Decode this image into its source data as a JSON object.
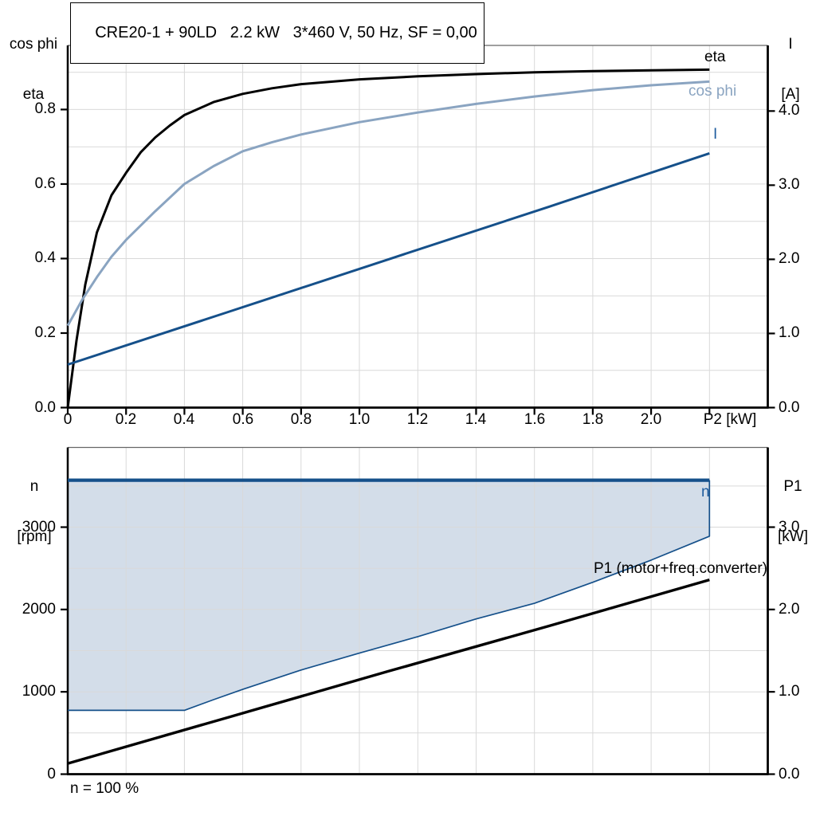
{
  "header": {
    "title": "CRE20-1 + 90LD   2.2 kW   3*460 V, 50 Hz, SF = 0,00"
  },
  "footnote": {
    "text": "n = 100 %"
  },
  "colors": {
    "curve_black": "#000000",
    "cos_phi_blue": "#8AA4C1",
    "dark_blue": "#15508A",
    "label_blue": "#1E5C9E",
    "area_fill": "#D3DDE9",
    "grid": "#D9D9D9",
    "frame": "#000000",
    "frame_top": "#666666"
  },
  "top_chart": {
    "left_axis_title": [
      "cos phi",
      "eta"
    ],
    "right_axis_title": [
      "I",
      "[A]"
    ],
    "x_axis_title": "P2 [kW]",
    "curve_labels": {
      "eta": "eta",
      "cos_phi": "cos phi",
      "i": "I"
    }
  },
  "bottom_chart": {
    "left_axis_title": [
      "n",
      "[rpm]"
    ],
    "right_axis_title": [
      "P1",
      "[kW]"
    ],
    "curve_labels": {
      "n": "n",
      "p1": "P1 (motor+freq.converter)"
    }
  },
  "chart_data": [
    {
      "id": "top",
      "type": "line",
      "title": "CRE20-1 + 90LD   2.2 kW   3*460 V, 50 Hz, SF = 0,00",
      "xlabel": "P2 [kW]",
      "x_axis": {
        "lim": [
          0,
          2.4
        ],
        "grid_step": 0.2,
        "ticks": [
          {
            "v": 0,
            "label": "0"
          },
          {
            "v": 0.2,
            "label": "0.2"
          },
          {
            "v": 0.4,
            "label": "0.4"
          },
          {
            "v": 0.6,
            "label": "0.6"
          },
          {
            "v": 0.8,
            "label": "0.8"
          },
          {
            "v": 1.0,
            "label": "1.0"
          },
          {
            "v": 1.2,
            "label": "1.2"
          },
          {
            "v": 1.4,
            "label": "1.4"
          },
          {
            "v": 1.6,
            "label": "1.6"
          },
          {
            "v": 1.8,
            "label": "1.8"
          },
          {
            "v": 2.0,
            "label": "2.0"
          },
          {
            "v": 2.2,
            "label": ""
          }
        ]
      },
      "left_axis": {
        "label": "cos phi / eta",
        "lim": [
          0,
          0.972
        ],
        "grid_step": 0.1,
        "ticks": [
          {
            "v": 0,
            "label": "0.0"
          },
          {
            "v": 0.2,
            "label": "0.2"
          },
          {
            "v": 0.4,
            "label": "0.4"
          },
          {
            "v": 0.6,
            "label": "0.6"
          },
          {
            "v": 0.8,
            "label": "0.8"
          }
        ]
      },
      "right_axis": {
        "label": "I [A]",
        "lim": [
          0,
          4.885
        ],
        "ticks": [
          {
            "v": 0,
            "label": "0.0"
          },
          {
            "v": 1,
            "label": "1.0"
          },
          {
            "v": 2,
            "label": "2.0"
          },
          {
            "v": 3,
            "label": "3.0"
          },
          {
            "v": 4,
            "label": "4.0"
          }
        ]
      },
      "series": [
        {
          "name": "eta",
          "axis": "left",
          "color": "#000000",
          "width": 3,
          "points": [
            [
              0,
              0
            ],
            [
              0.03,
              0.18
            ],
            [
              0.06,
              0.33
            ],
            [
              0.1,
              0.47
            ],
            [
              0.15,
              0.57
            ],
            [
              0.2,
              0.63
            ],
            [
              0.25,
              0.685
            ],
            [
              0.3,
              0.725
            ],
            [
              0.35,
              0.757
            ],
            [
              0.4,
              0.785
            ],
            [
              0.5,
              0.82
            ],
            [
              0.6,
              0.842
            ],
            [
              0.7,
              0.857
            ],
            [
              0.8,
              0.868
            ],
            [
              1.0,
              0.881
            ],
            [
              1.2,
              0.889
            ],
            [
              1.4,
              0.895
            ],
            [
              1.6,
              0.9
            ],
            [
              1.8,
              0.903
            ],
            [
              2.0,
              0.905
            ],
            [
              2.2,
              0.907
            ]
          ]
        },
        {
          "name": "cos phi",
          "axis": "left",
          "color": "#8AA4C1",
          "width": 3,
          "points": [
            [
              0,
              0.22
            ],
            [
              0.05,
              0.29
            ],
            [
              0.1,
              0.35
            ],
            [
              0.15,
              0.405
            ],
            [
              0.2,
              0.45
            ],
            [
              0.3,
              0.527
            ],
            [
              0.4,
              0.6
            ],
            [
              0.5,
              0.648
            ],
            [
              0.6,
              0.688
            ],
            [
              0.7,
              0.712
            ],
            [
              0.8,
              0.733
            ],
            [
              1.0,
              0.766
            ],
            [
              1.2,
              0.792
            ],
            [
              1.4,
              0.815
            ],
            [
              1.6,
              0.835
            ],
            [
              1.8,
              0.852
            ],
            [
              2.0,
              0.865
            ],
            [
              2.2,
              0.875
            ]
          ]
        },
        {
          "name": "I",
          "axis": "right",
          "color": "#15508A",
          "width": 3,
          "points": [
            [
              0,
              0.58
            ],
            [
              0.55,
              1.29
            ],
            [
              1.1,
              2.0
            ],
            [
              1.65,
              2.71
            ],
            [
              2.2,
              3.43
            ]
          ]
        }
      ]
    },
    {
      "id": "bottom",
      "type": "area",
      "xlabel": "",
      "x_axis": {
        "lim": [
          0,
          2.4
        ],
        "grid_step": 0.2,
        "ticks": []
      },
      "left_axis": {
        "label": "n [rpm]",
        "lim": [
          0,
          3968
        ],
        "grid_step": 500,
        "ticks": [
          {
            "v": 0,
            "label": "0"
          },
          {
            "v": 1000,
            "label": "1000"
          },
          {
            "v": 2000,
            "label": "2000"
          },
          {
            "v": 3000,
            "label": "3000"
          }
        ]
      },
      "right_axis": {
        "label": "P1 [kW]",
        "lim": [
          0,
          3.968
        ],
        "ticks": [
          {
            "v": 0,
            "label": "0.0"
          },
          {
            "v": 1,
            "label": "1.0"
          },
          {
            "v": 2,
            "label": "2.0"
          },
          {
            "v": 3,
            "label": "3.0"
          }
        ]
      },
      "area": {
        "name": "speed-operating-range",
        "fill": "#D3DDE9"
      },
      "series": [
        {
          "name": "envelope-lower",
          "axis": "left",
          "color": "#15508A",
          "width": 1.7,
          "points": [
            [
              0,
              775
            ],
            [
              0.4,
              775
            ],
            [
              0.5,
              905
            ],
            [
              0.6,
              1030
            ],
            [
              0.8,
              1265
            ],
            [
              1.0,
              1470
            ],
            [
              1.2,
              1670
            ],
            [
              1.4,
              1885
            ],
            [
              1.6,
              2075
            ],
            [
              1.8,
              2330
            ],
            [
              2.0,
              2600
            ],
            [
              2.2,
              2890
            ],
            [
              2.2,
              3570
            ]
          ]
        },
        {
          "name": "n",
          "axis": "left",
          "color": "#15508A",
          "width": 4.2,
          "points": [
            [
              0,
              3570
            ],
            [
              2.2,
              3570
            ]
          ]
        },
        {
          "name": "P1 (motor+freq.converter)",
          "axis": "right",
          "color": "#000000",
          "width": 3.4,
          "points": [
            [
              0,
              0.13
            ],
            [
              0.55,
              0.69
            ],
            [
              1.1,
              1.25
            ],
            [
              1.65,
              1.8
            ],
            [
              2.2,
              2.36
            ]
          ]
        }
      ],
      "note": "n = 100 %"
    }
  ]
}
